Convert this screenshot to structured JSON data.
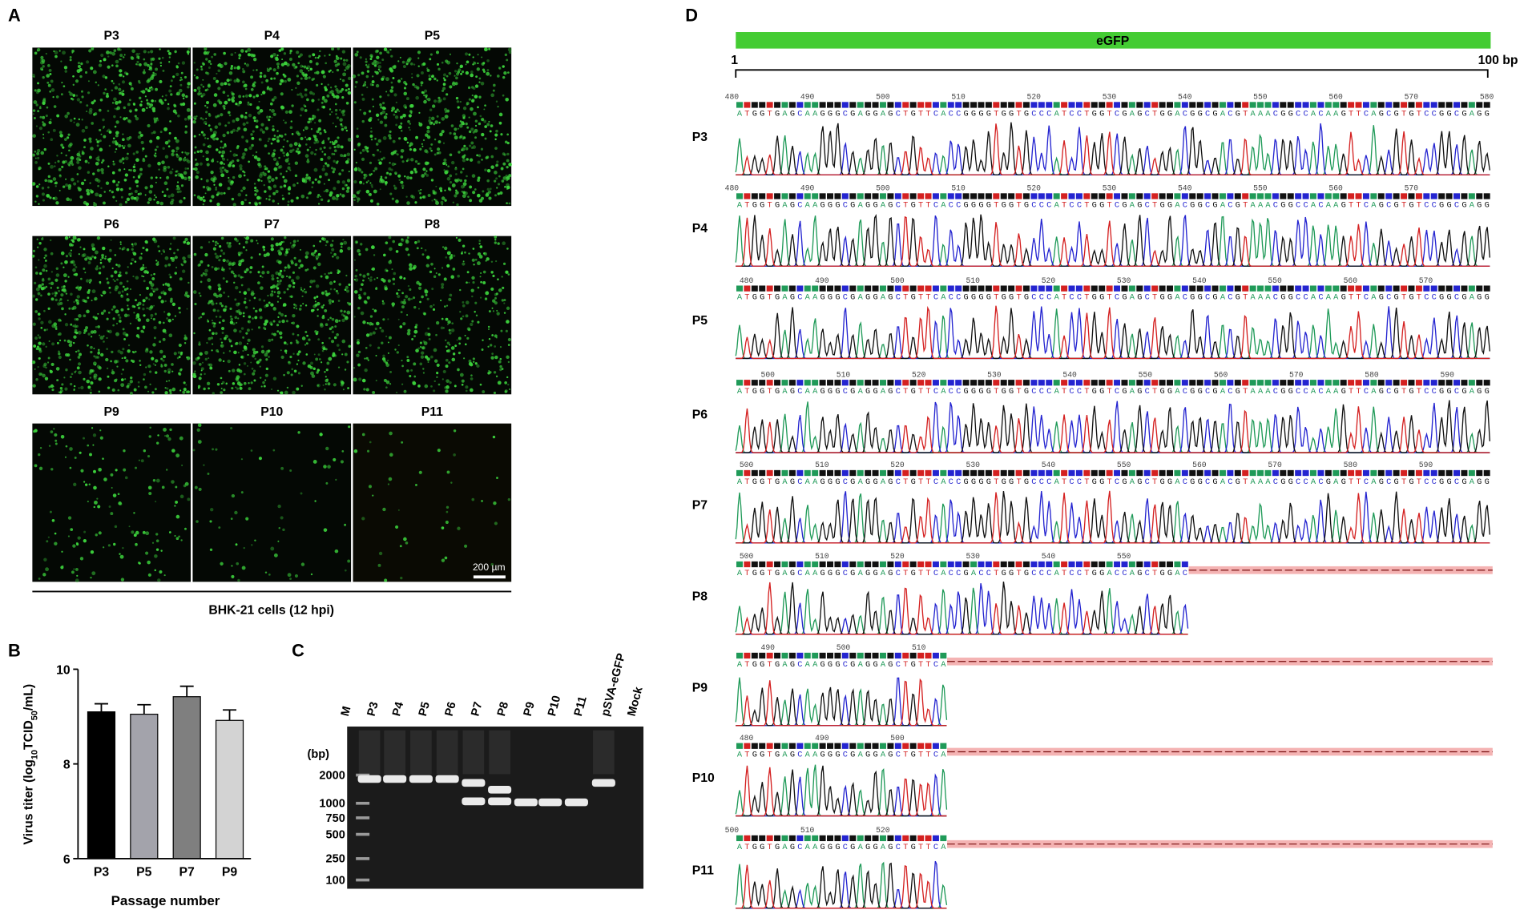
{
  "panel_a": {
    "label": "A",
    "titles": [
      "P3",
      "P4",
      "P5",
      "P6",
      "P7",
      "P8",
      "P9",
      "P10",
      "P11"
    ],
    "scale_bar": "200 µm",
    "caption": "BHK-21 cells (12 hpi)"
  },
  "chart_data": {
    "type": "bar",
    "label": "B",
    "y_label_parts": [
      "Virus titer (log",
      "10",
      "TCID",
      "50",
      "/mL)"
    ],
    "x_label": "Passage number",
    "categories": [
      "P3",
      "P5",
      "P7",
      "P9"
    ],
    "values": [
      9.1,
      9.05,
      9.42,
      8.92
    ],
    "errors": [
      0.17,
      0.2,
      0.22,
      0.22
    ],
    "colors": [
      "#000000",
      "#a3a3ab",
      "#7f7f7f",
      "#d3d3d3"
    ],
    "ylim": [
      6,
      10
    ],
    "yticks": [
      6,
      8,
      10
    ]
  },
  "panel_c": {
    "label": "C",
    "lanes": [
      "M",
      "P3",
      "P4",
      "P5",
      "P6",
      "P7",
      "P8",
      "P9",
      "P10",
      "P11",
      "pSVA-eGFP",
      "Mock"
    ],
    "size_unit": "(bp)",
    "ladder": [
      2000,
      1000,
      750,
      500,
      250,
      100
    ]
  },
  "panel_d": {
    "label": "D",
    "gene": "eGFP",
    "start": "1",
    "end": "100 bp",
    "rows": [
      {
        "name": "P3",
        "positions": [
          480,
          490,
          500,
          510,
          520,
          530,
          540,
          550,
          560,
          570,
          580
        ],
        "sequence": "ATGGTGAGCAAGGGCGAGGAGCTGTTCACCGGGGTGGTGCCCATCCTGGTCGAGCTGGACGGCGACGTAAACGGCCACAAGTTCAGCGTGTCCGGCGAGG"
      },
      {
        "name": "P4",
        "positions": [
          480,
          490,
          500,
          510,
          520,
          530,
          540,
          550,
          560,
          570
        ],
        "sequence": "ATGGTGAGCAAGGGCGAGGAGCTGTTCACCGGGGTGGTGCCCATCCTGGTCGAGCTGGACGGCGACGTAAACGGCCACAAGTTCAGCGTGTCCGGCGAGG"
      },
      {
        "name": "P5",
        "positions": [
          480,
          490,
          500,
          510,
          520,
          530,
          540,
          550,
          560,
          570
        ],
        "sequence": "ATGGTGAGCAAGGGCGAGGAGCTGTTCACCGGGGTGGTGCCCATCCTGGTCGAGCTGGACGGCGACGTAAACGGCCACAAGTTCAGCGTGTCCGGCGAGG"
      },
      {
        "name": "P6",
        "positions": [
          500,
          510,
          520,
          530,
          540,
          550,
          560,
          570,
          580,
          590
        ],
        "sequence": "ATGGTGAGCAAGGGCGAGGAGCTGTTCACCGGGGTGGTGCCCATCCTGGTCGAGCTGGACGGCGACGTAAACGGCCACAAGTTCAGCGTGTCCGGCGAGG"
      },
      {
        "name": "P7",
        "positions": [
          500,
          510,
          520,
          530,
          540,
          550,
          560,
          570,
          580,
          590
        ],
        "sequence": "ATGGTGAGCAAGGGCGAGGAGCTGTTCACCGGGGTGGTGCCCATCCTGGTCGAGCTGGACGGCGACGTAAACGGCCACGAGTTCAGCGTGTCCGGCGAGG"
      },
      {
        "name": "P8",
        "positions": [
          500,
          510,
          520,
          530,
          540,
          550
        ],
        "sequence": "ATGGTGAGCAAGGGCGAGGAGCTGTTCACCGACCTGGTGCCCATCCTGGACCAGCTGGAC"
      },
      {
        "name": "P9",
        "positions": [
          490,
          500,
          510
        ],
        "sequence": "ATGGTGAGCAAGGGCGAGGAGCTGTTCA"
      },
      {
        "name": "P10",
        "positions": [
          480,
          490,
          500
        ],
        "sequence": "ATGGTGAGCAAGGGCGAGGAGCTGTTCA"
      },
      {
        "name": "P11",
        "positions": [
          500,
          510,
          520
        ],
        "sequence": "ATGGTGAGCAAGGGCGAGGAGCTGTTCA"
      }
    ]
  }
}
